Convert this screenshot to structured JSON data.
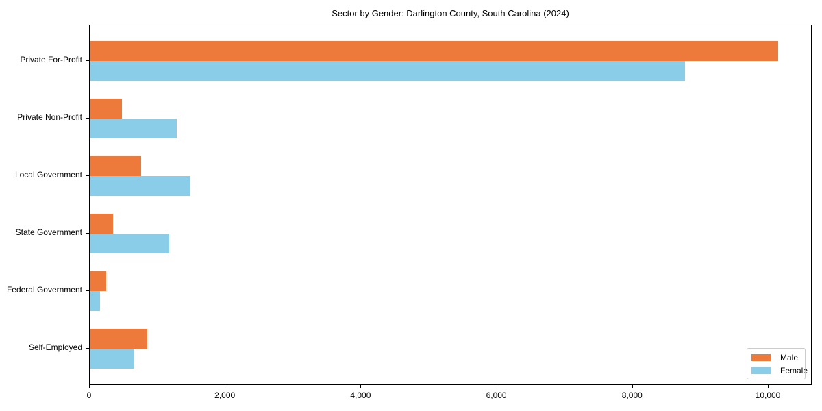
{
  "chart_data": {
    "type": "bar",
    "orientation": "horizontal",
    "title": "Sector by Gender: Darlington County, South Carolina (2024)",
    "xlabel": "",
    "ylabel": "",
    "categories": [
      "Private For-Profit",
      "Private Non-Profit",
      "Local Government",
      "State Government",
      "Federal Government",
      "Self-Employed"
    ],
    "series": [
      {
        "name": "Male",
        "color": "#ed7a3b",
        "values": [
          10141,
          474,
          757,
          343,
          242,
          848
        ]
      },
      {
        "name": "Female",
        "color": "#89cde9",
        "values": [
          8769,
          1282,
          1483,
          1170,
          151,
          646
        ]
      }
    ],
    "xticks": [
      "0",
      "2,000",
      "4,000",
      "6,000",
      "8,000",
      "10,000"
    ],
    "xlim": [
      0,
      10650
    ],
    "grid": false,
    "legend_position": "lower right"
  },
  "legend": {
    "male_label": "Male",
    "female_label": "Female"
  }
}
